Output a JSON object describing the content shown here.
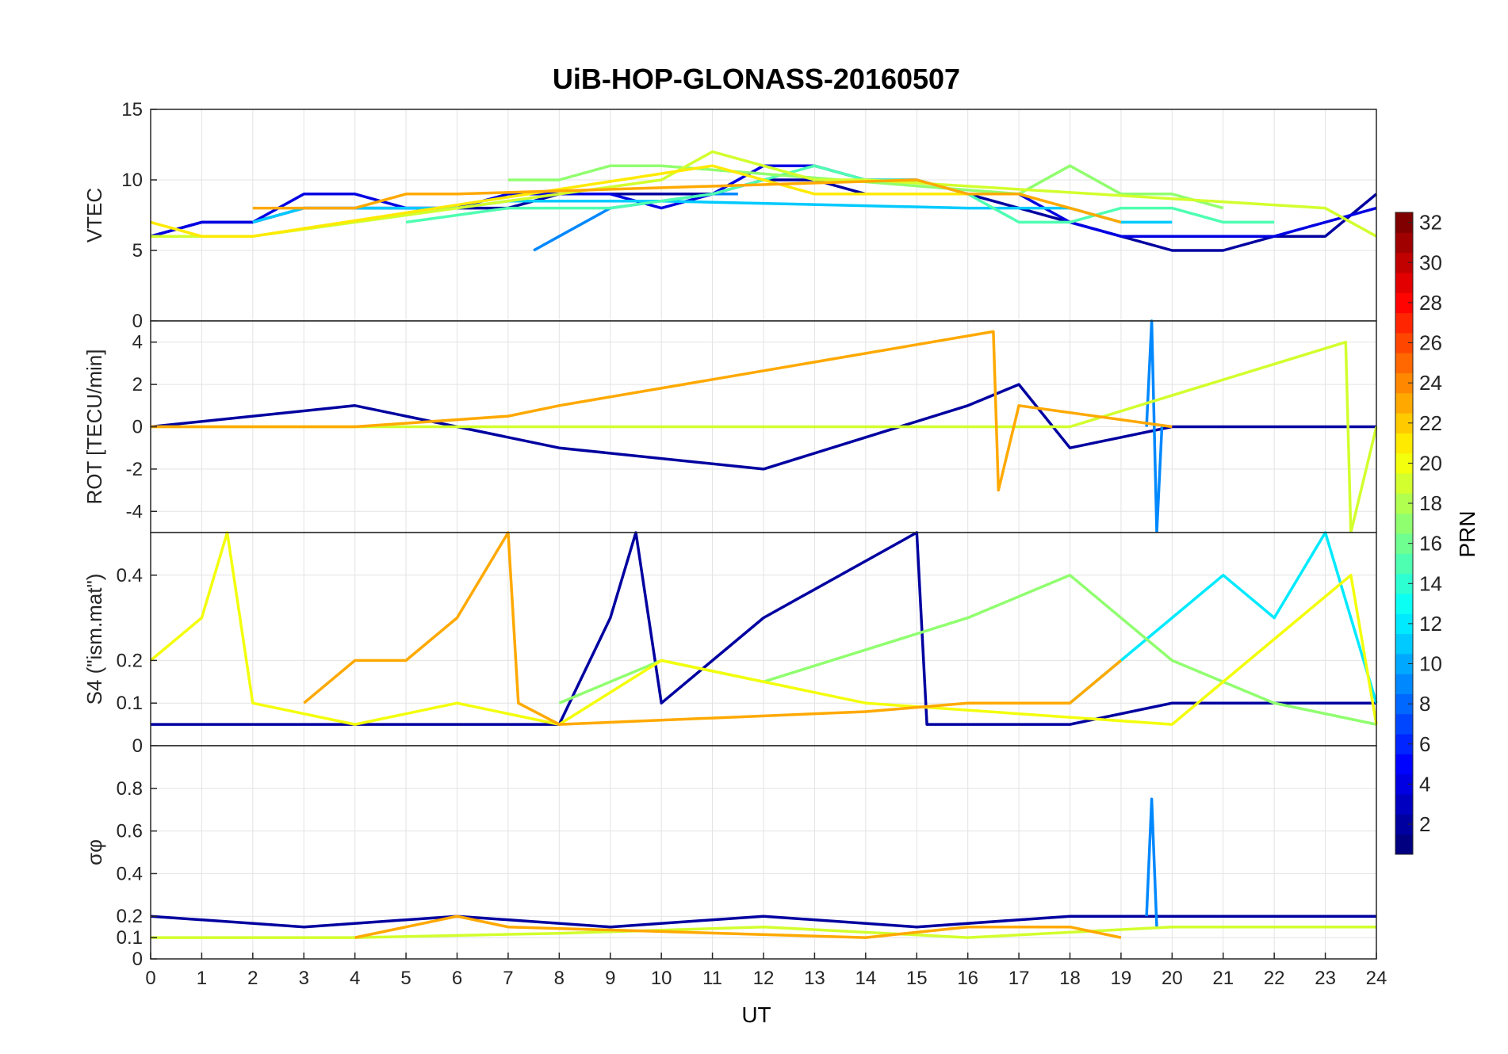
{
  "figure": {
    "title": "UiB-HOP-GLONASS-20160507",
    "xlabel": "UT",
    "colorbar_label": "PRN"
  },
  "chart_data": [
    {
      "type": "line",
      "panel": "vtec",
      "ylabel": "VTEC",
      "xlim": [
        0,
        24
      ],
      "ylim": [
        0,
        15
      ],
      "xticks": [
        0,
        1,
        2,
        3,
        4,
        5,
        6,
        7,
        8,
        9,
        10,
        11,
        12,
        13,
        14,
        15,
        16,
        17,
        18,
        19,
        20,
        21,
        22,
        23,
        24
      ],
      "yticks": [
        0,
        5,
        10,
        15
      ],
      "grid": true,
      "series": [
        {
          "prn": 2,
          "x": [
            0,
            1,
            2,
            3,
            4,
            5,
            6,
            7,
            8,
            9,
            10,
            11,
            12,
            13,
            14,
            15,
            16,
            17,
            18,
            19,
            20,
            21,
            22,
            23,
            24
          ],
          "y": [
            6,
            7,
            7,
            8,
            8,
            8,
            8,
            8,
            9,
            9,
            9,
            9,
            10,
            10,
            9,
            9,
            9,
            8,
            7,
            6,
            5,
            5,
            6,
            6,
            9
          ]
        },
        {
          "prn": 4,
          "x": [
            0,
            1,
            2,
            3,
            4,
            5,
            6,
            7,
            8,
            9,
            10,
            11,
            12,
            13,
            14,
            15,
            16,
            17,
            18,
            19,
            20,
            21,
            22,
            23,
            24
          ],
          "y": [
            6,
            7,
            7,
            9,
            9,
            8,
            8,
            9,
            9,
            9,
            8,
            9,
            11,
            11,
            10,
            10,
            9,
            9,
            7,
            6,
            6,
            6,
            6,
            7,
            8
          ]
        },
        {
          "prn": 9,
          "x": [
            7.5,
            8,
            9,
            10,
            11,
            11.5
          ],
          "y": [
            5,
            6,
            8,
            8.5,
            9,
            9
          ]
        },
        {
          "prn": 11,
          "x": [
            2,
            3,
            4,
            5,
            6,
            7,
            8,
            9,
            10,
            16,
            17,
            18,
            19,
            20
          ],
          "y": [
            7,
            8,
            8,
            8,
            8,
            8.5,
            8.5,
            8.5,
            8.5,
            8,
            8,
            8,
            7,
            7
          ]
        },
        {
          "prn": 15,
          "x": [
            5,
            6,
            7,
            8,
            9,
            10,
            11,
            12,
            13,
            14,
            15,
            16,
            17,
            18,
            19,
            20,
            21,
            22
          ],
          "y": [
            7,
            7.5,
            8,
            8,
            8,
            8.5,
            9,
            10,
            11,
            10,
            10,
            9,
            7,
            7,
            8,
            8,
            7,
            7
          ]
        },
        {
          "prn": 17,
          "x": [
            7,
            8,
            9,
            10,
            17,
            18,
            19,
            20,
            21
          ],
          "y": [
            10,
            10,
            11,
            11,
            9,
            11,
            9,
            9,
            8
          ]
        },
        {
          "prn": 19,
          "x": [
            0,
            1,
            2,
            10,
            11,
            12,
            13,
            14,
            23,
            24
          ],
          "y": [
            6,
            6,
            6,
            10,
            12,
            11,
            10,
            10,
            8,
            6
          ]
        },
        {
          "prn": 21,
          "x": [
            0,
            1,
            2,
            11,
            12,
            13,
            14,
            15,
            16
          ],
          "y": [
            7,
            6,
            6,
            11,
            10,
            9,
            9,
            9,
            9
          ]
        },
        {
          "prn": 23,
          "x": [
            2,
            3,
            4,
            5,
            6,
            15,
            16,
            17,
            18,
            19
          ],
          "y": [
            8,
            8,
            8,
            9,
            9,
            10,
            9,
            9,
            8,
            7
          ]
        }
      ]
    },
    {
      "type": "line",
      "panel": "rot",
      "ylabel": "ROT [TECU/min]",
      "xlim": [
        0,
        24
      ],
      "ylim": [
        -5,
        5
      ],
      "yticks": [
        -4,
        -2,
        0,
        2,
        4
      ],
      "grid": true,
      "series": [
        {
          "prn": 2,
          "x": [
            0,
            4,
            8,
            12,
            16,
            17,
            18,
            20,
            24
          ],
          "y": [
            0,
            1,
            -1,
            -2,
            1,
            2,
            -1,
            0,
            0
          ]
        },
        {
          "prn": 9,
          "x": [
            19.5,
            19.6,
            19.7,
            19.8
          ],
          "y": [
            0,
            5,
            -5,
            0
          ]
        },
        {
          "prn": 19,
          "x": [
            0,
            6,
            12,
            18,
            23.4,
            23.5,
            24
          ],
          "y": [
            0,
            0,
            0,
            0,
            4,
            -5,
            0
          ]
        },
        {
          "prn": 23,
          "x": [
            0,
            4,
            7,
            8,
            16.5,
            16.6,
            17,
            20
          ],
          "y": [
            0,
            0,
            0.5,
            1,
            4.5,
            -3,
            1,
            0
          ]
        }
      ]
    },
    {
      "type": "line",
      "panel": "s4",
      "ylabel": "S4 (\"ism.mat\")",
      "xlim": [
        0,
        24
      ],
      "ylim": [
        0,
        0.5
      ],
      "yticks": [
        0,
        0.1,
        0.2,
        0.4
      ],
      "grid": true,
      "series": [
        {
          "prn": 2,
          "x": [
            0,
            4,
            8,
            9,
            9.5,
            10,
            12,
            15,
            15.2,
            18,
            20,
            24
          ],
          "y": [
            0.05,
            0.05,
            0.05,
            0.3,
            0.5,
            0.1,
            0.3,
            0.5,
            0.05,
            0.05,
            0.1,
            0.1
          ]
        },
        {
          "prn": 12,
          "x": [
            18,
            19,
            20,
            21,
            22,
            23,
            24
          ],
          "y": [
            0.1,
            0.2,
            0.3,
            0.4,
            0.3,
            0.5,
            0.1
          ]
        },
        {
          "prn": 17,
          "x": [
            8,
            10,
            12,
            16,
            18,
            20,
            22,
            24
          ],
          "y": [
            0.1,
            0.2,
            0.15,
            0.3,
            0.4,
            0.2,
            0.1,
            0.05
          ]
        },
        {
          "prn": 20,
          "x": [
            0,
            1,
            1.5,
            2,
            4,
            6,
            8,
            10,
            14,
            20,
            23.5,
            24
          ],
          "y": [
            0.2,
            0.3,
            0.5,
            0.1,
            0.05,
            0.1,
            0.05,
            0.2,
            0.1,
            0.05,
            0.4,
            0.05
          ]
        },
        {
          "prn": 23,
          "x": [
            3,
            4,
            5,
            6,
            7,
            7.2,
            8,
            14,
            16,
            18,
            19
          ],
          "y": [
            0.1,
            0.2,
            0.2,
            0.3,
            0.5,
            0.1,
            0.05,
            0.08,
            0.1,
            0.1,
            0.2
          ]
        }
      ]
    },
    {
      "type": "line",
      "panel": "sigma_phi",
      "ylabel": "σφ",
      "xlim": [
        0,
        24
      ],
      "ylim": [
        0,
        1
      ],
      "yticks": [
        0,
        0.1,
        0.2,
        0.4,
        0.6,
        0.8
      ],
      "grid": true,
      "series": [
        {
          "prn": 2,
          "x": [
            0,
            3,
            6,
            9,
            12,
            15,
            18,
            21,
            24
          ],
          "y": [
            0.2,
            0.15,
            0.2,
            0.15,
            0.2,
            0.15,
            0.2,
            0.2,
            0.2
          ]
        },
        {
          "prn": 9,
          "x": [
            19.5,
            19.6,
            19.7
          ],
          "y": [
            0.2,
            0.75,
            0.15
          ]
        },
        {
          "prn": 19,
          "x": [
            0,
            4,
            8,
            12,
            16,
            20,
            24
          ],
          "y": [
            0.1,
            0.1,
            0.12,
            0.15,
            0.1,
            0.15,
            0.15
          ]
        },
        {
          "prn": 23,
          "x": [
            4,
            5,
            6,
            7,
            14,
            16,
            18,
            19
          ],
          "y": [
            0.1,
            0.15,
            0.2,
            0.15,
            0.1,
            0.15,
            0.15,
            0.1
          ]
        }
      ]
    }
  ],
  "colorbar": {
    "label": "PRN",
    "range": [
      1,
      32
    ],
    "ticks": [
      2,
      4,
      6,
      8,
      10,
      12,
      14,
      16,
      18,
      20,
      22,
      24,
      26,
      28,
      30,
      32
    ]
  }
}
